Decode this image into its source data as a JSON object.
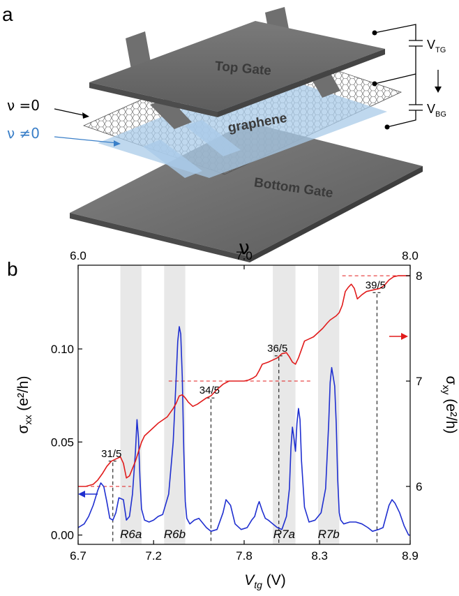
{
  "panel_a": {
    "label": "a",
    "top_gate": "Top Gate",
    "bottom_gate": "Bottom Gate",
    "graphene": "graphene",
    "nu_zero": "ν =0",
    "nu_nonzero": "ν ≠0",
    "v_tg": "V",
    "v_tg_sub": "TG",
    "v_bg": "V",
    "v_bg_sub": "BG",
    "colors": {
      "gate": "#6f6f6f",
      "gate_text": "#3a3a3a",
      "nonzero_region": "#aacbe8",
      "nonzero_label": "#3a7fc8"
    }
  },
  "panel_b": {
    "label": "b",
    "top_axis_symbol": "ν",
    "bottom_axis_symbol": "V",
    "bottom_axis_sub": "tg",
    "bottom_axis_unit": " (V)",
    "left_axis_symbol": "σ",
    "left_axis_sub": "xx",
    "left_axis_unit": " (e²/h)",
    "right_axis_symbol": "σ",
    "right_axis_sub": "xy",
    "right_axis_unit": " (e²/h)",
    "colors": {
      "sigma_xx": "#1f2fd0",
      "sigma_xy": "#e11b1b",
      "band": "#e8e8e8"
    }
  },
  "chart_data": {
    "type": "line",
    "x_ticks": [
      "6.7",
      "7.2",
      "7.8",
      "8.3",
      "8.9"
    ],
    "top_ticks": [
      "6.0",
      "7.0",
      "8.0"
    ],
    "left_ticks": [
      "0.00",
      "0.05",
      "0.10"
    ],
    "right_ticks": [
      "6",
      "7",
      "8"
    ],
    "xlim": [
      6.7,
      8.9
    ],
    "top_lim": [
      6.0,
      8.0
    ],
    "left_lim": [
      -0.005,
      0.145
    ],
    "right_lim": [
      5.45,
      8.1
    ],
    "bands": [
      {
        "label": "R6a",
        "x": [
          6.98,
          7.12
        ]
      },
      {
        "label": "R6b",
        "x": [
          7.27,
          7.41
        ]
      },
      {
        "label": "R7a",
        "x": [
          7.99,
          8.14
        ]
      },
      {
        "label": "R7b",
        "x": [
          8.29,
          8.43
        ]
      }
    ],
    "fractions": [
      {
        "label": "31/5",
        "x": 6.93,
        "sxy": 6.2
      },
      {
        "label": "34/5",
        "x": 7.58,
        "sxy": 6.8
      },
      {
        "label": "36/5",
        "x": 8.03,
        "sxy": 7.2
      },
      {
        "label": "39/5",
        "x": 8.68,
        "sxy": 7.8
      }
    ],
    "plateaus": [
      {
        "value": 6.0,
        "x": [
          6.7,
          7.05
        ]
      },
      {
        "value": 7.0,
        "x": [
          7.3,
          8.25
        ]
      },
      {
        "value": 8.0,
        "x": [
          8.45,
          8.9
        ]
      }
    ],
    "series": [
      {
        "axis": "left",
        "x": [
          6.7,
          6.74,
          6.77,
          6.8,
          6.83,
          6.85,
          6.87,
          6.89,
          6.91,
          6.93,
          6.95,
          6.97,
          7.0,
          7.02,
          7.04,
          7.06,
          7.08,
          7.09,
          7.1,
          7.11,
          7.12,
          7.14,
          7.17,
          7.2,
          7.23,
          7.26,
          7.3,
          7.33,
          7.35,
          7.36,
          7.37,
          7.38,
          7.39,
          7.4,
          7.41,
          7.42,
          7.44,
          7.47,
          7.5,
          7.55,
          7.58,
          7.62,
          7.66,
          7.68,
          7.71,
          7.74,
          7.78,
          7.82,
          7.85,
          7.87,
          7.89,
          7.9,
          7.92,
          7.94,
          7.96,
          7.99,
          8.02,
          8.05,
          8.08,
          8.1,
          8.11,
          8.12,
          8.13,
          8.14,
          8.15,
          8.16,
          8.17,
          8.18,
          8.2,
          8.23,
          8.27,
          8.31,
          8.34,
          8.36,
          8.37,
          8.38,
          8.39,
          8.4,
          8.41,
          8.42,
          8.43,
          8.44,
          8.46,
          8.5,
          8.54,
          8.58,
          8.62,
          8.65,
          8.69,
          8.72,
          8.74,
          8.76,
          8.78,
          8.8,
          8.83,
          8.86,
          8.89,
          8.9
        ],
        "y": [
          0.004,
          0.006,
          0.01,
          0.016,
          0.024,
          0.028,
          0.026,
          0.018,
          0.009,
          0.008,
          0.012,
          0.02,
          0.019,
          0.008,
          0.01,
          0.022,
          0.045,
          0.062,
          0.052,
          0.03,
          0.014,
          0.008,
          0.007,
          0.008,
          0.01,
          0.011,
          0.022,
          0.05,
          0.085,
          0.104,
          0.112,
          0.108,
          0.085,
          0.045,
          0.018,
          0.009,
          0.006,
          0.008,
          0.009,
          0.004,
          0.002,
          0.003,
          0.012,
          0.019,
          0.016,
          0.006,
          0.003,
          0.004,
          0.008,
          0.01,
          0.016,
          0.018,
          0.013,
          0.009,
          0.008,
          0.006,
          0.004,
          0.003,
          0.01,
          0.025,
          0.047,
          0.058,
          0.052,
          0.045,
          0.06,
          0.068,
          0.062,
          0.04,
          0.015,
          0.007,
          0.008,
          0.012,
          0.025,
          0.06,
          0.082,
          0.09,
          0.085,
          0.08,
          0.06,
          0.03,
          0.012,
          0.008,
          0.006,
          0.007,
          0.007,
          0.006,
          0.004,
          0.002,
          0.003,
          0.004,
          0.01,
          0.016,
          0.019,
          0.017,
          0.012,
          0.005,
          0.0,
          0.0
        ]
      },
      {
        "axis": "right",
        "x": [
          6.7,
          6.75,
          6.8,
          6.83,
          6.86,
          6.89,
          6.92,
          6.95,
          6.98,
          7.0,
          7.02,
          7.04,
          7.06,
          7.08,
          7.1,
          7.12,
          7.14,
          7.17,
          7.2,
          7.23,
          7.26,
          7.29,
          7.31,
          7.33,
          7.35,
          7.37,
          7.39,
          7.41,
          7.43,
          7.46,
          7.49,
          7.52,
          7.55,
          7.58,
          7.62,
          7.66,
          7.7,
          7.72,
          7.74,
          7.77,
          7.8,
          7.83,
          7.86,
          7.88,
          7.9,
          7.92,
          7.94,
          7.96,
          7.99,
          8.02,
          8.05,
          8.08,
          8.1,
          8.12,
          8.14,
          8.16,
          8.18,
          8.2,
          8.23,
          8.26,
          8.29,
          8.32,
          8.35,
          8.37,
          8.39,
          8.41,
          8.43,
          8.45,
          8.47,
          8.49,
          8.51,
          8.53,
          8.55,
          8.58,
          8.61,
          8.64,
          8.67,
          8.7,
          8.73,
          8.76,
          8.79,
          8.82,
          8.84,
          8.86,
          8.88,
          8.9
        ],
        "y": [
          6.0,
          6.0,
          6.02,
          6.06,
          6.12,
          6.19,
          6.24,
          6.26,
          6.28,
          6.22,
          6.08,
          6.1,
          6.17,
          6.24,
          6.33,
          6.42,
          6.48,
          6.52,
          6.56,
          6.6,
          6.63,
          6.66,
          6.7,
          6.74,
          6.79,
          6.86,
          6.87,
          6.84,
          6.8,
          6.76,
          6.78,
          6.81,
          6.84,
          6.86,
          6.92,
          6.97,
          7.0,
          7.0,
          7.0,
          7.0,
          7.0,
          7.01,
          7.03,
          7.05,
          7.1,
          7.16,
          7.17,
          7.18,
          7.2,
          7.22,
          7.26,
          7.27,
          7.23,
          7.18,
          7.16,
          7.22,
          7.3,
          7.38,
          7.4,
          7.42,
          7.46,
          7.5,
          7.55,
          7.58,
          7.6,
          7.62,
          7.65,
          7.72,
          7.85,
          7.89,
          7.92,
          7.88,
          7.78,
          7.82,
          7.85,
          7.86,
          7.87,
          7.88,
          7.91,
          7.96,
          7.99,
          8.0,
          8.0,
          8.0,
          8.0,
          8.0
        ]
      }
    ]
  }
}
